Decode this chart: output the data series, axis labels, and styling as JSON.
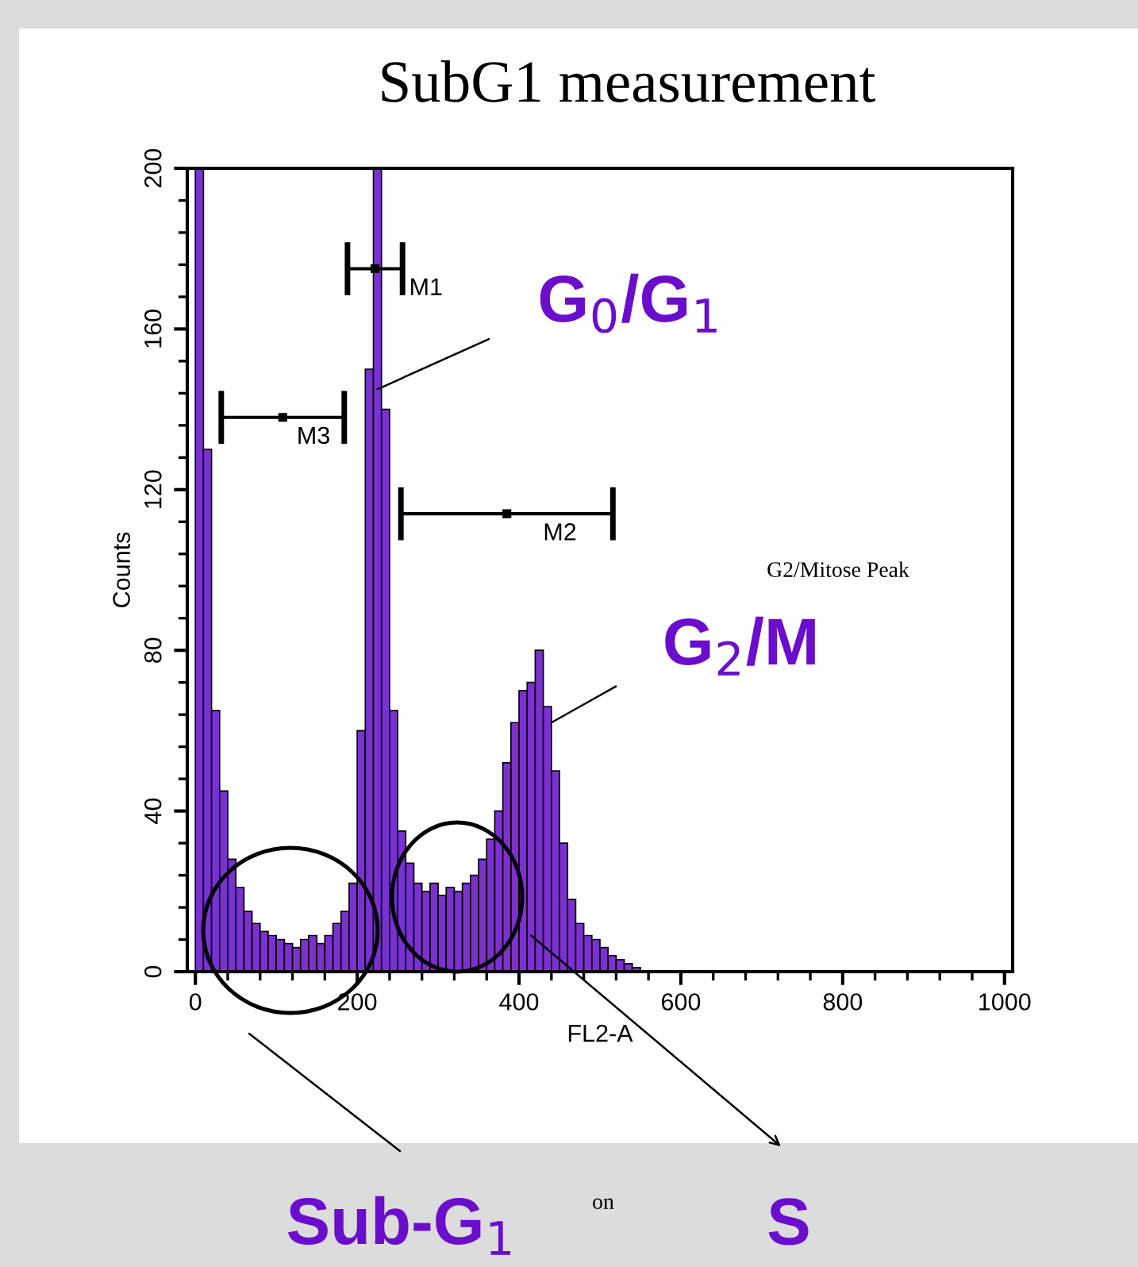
{
  "chart_data": {
    "type": "histogram",
    "title": "SubG1 measurement",
    "xlabel": "FL2-A",
    "ylabel": "Counts",
    "bins": [
      0,
      10,
      20,
      30,
      40,
      50,
      60,
      70,
      80,
      90,
      100,
      110,
      120,
      130,
      140,
      150,
      160,
      170,
      180,
      190,
      200,
      210,
      220,
      230,
      240,
      250,
      260,
      270,
      280,
      290,
      300,
      310,
      320,
      330,
      340,
      350,
      360,
      370,
      380,
      390,
      400,
      410,
      420,
      430,
      440,
      450,
      460,
      470,
      480,
      490,
      500,
      510,
      520,
      530,
      540,
      550
    ],
    "series": [
      {
        "color": "#7b30d0",
        "values": [
          200,
          130,
          65,
          45,
          28,
          21,
          15,
          12,
          10,
          9,
          8,
          7,
          6,
          8,
          9,
          7,
          9,
          12,
          15,
          22,
          60,
          150,
          200,
          140,
          65,
          35,
          27,
          22,
          20,
          22,
          19,
          21,
          20,
          22,
          24,
          28,
          33,
          40,
          52,
          62,
          70,
          72,
          80,
          66,
          50,
          32,
          18,
          12,
          9,
          8,
          6,
          4,
          3,
          2,
          1
        ]
      },
      {
        "type": "scatter",
        "name": "M1",
        "color": "#000000",
        "x": [
          222
        ],
        "values": [
          175
        ],
        "xerrors": [
          34
        ]
      },
      {
        "type": "scatter",
        "name": "M2",
        "color": "#000000",
        "x": [
          385
        ],
        "values": [
          114
        ],
        "xerrors": [
          131
        ]
      },
      {
        "type": "scatter",
        "name": "M3",
        "color": "#000000",
        "x": [
          108
        ],
        "values": [
          138
        ],
        "xerrors": [
          76
        ]
      }
    ],
    "marker": "square",
    "xlim": [
      -10,
      1010
    ],
    "xticks": [
      0,
      200,
      400,
      600,
      800,
      1000
    ],
    "ylim": [
      0,
      200
    ],
    "yticks": [
      0,
      40,
      80,
      120,
      160,
      200
    ],
    "grid": false,
    "legend": false,
    "annotations": [
      {
        "text": "G$_{0}$/G$_{1}$",
        "x": 225,
        "y": 145
      },
      {
        "text": "G$_{2}$/M",
        "x": 440,
        "y": 62
      },
      "Sub-G$_{1}$",
      {
        "text": "S",
        "x": 415,
        "y": 9
      },
      "G2/Mitose Peak",
      "on"
    ]
  }
}
